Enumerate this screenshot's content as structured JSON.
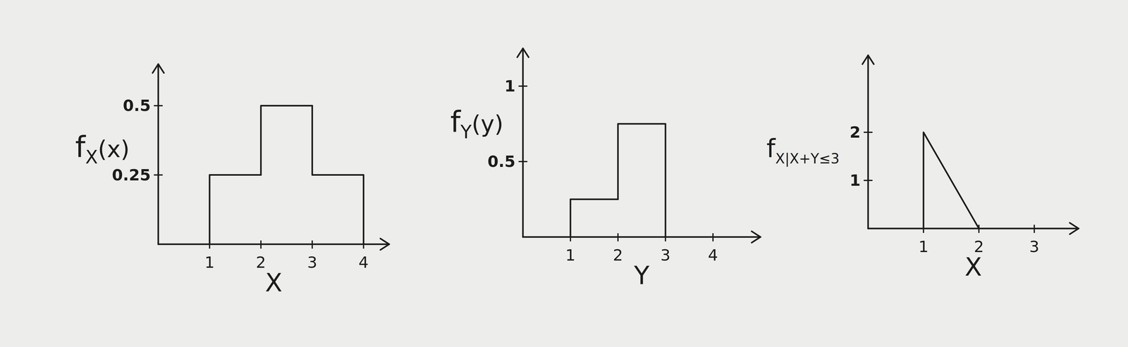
{
  "chart_data": [
    {
      "type": "step",
      "xlabel": "X",
      "ylabel": [
        "f",
        "X",
        "(x)"
      ],
      "bins": [
        1,
        2,
        3,
        4
      ],
      "values": [
        0.25,
        0.5,
        0.25
      ],
      "xlim": [
        0,
        4.5
      ],
      "ylim": [
        0,
        0.65
      ],
      "xticks": [
        1,
        2,
        3,
        4
      ],
      "yticks": [
        0.25,
        0.5
      ],
      "color": "#1c1c1c"
    },
    {
      "type": "step",
      "xlabel": "Y",
      "ylabel": [
        "f",
        "Y",
        "(y)"
      ],
      "bins": [
        1,
        2,
        3
      ],
      "values": [
        0.25,
        0.75
      ],
      "xlim": [
        0,
        5
      ],
      "ylim": [
        0,
        1.25
      ],
      "xticks": [
        1,
        2,
        3,
        4
      ],
      "yticks": [
        0.5,
        1
      ],
      "color": "#1c1c1c"
    },
    {
      "type": "line",
      "xlabel": "X",
      "ylabel": [
        "f",
        "X|X+Y≤3"
      ],
      "x": [
        1,
        1,
        2
      ],
      "values": [
        0,
        2,
        0
      ],
      "xlim": [
        0,
        3.8
      ],
      "ylim": [
        0,
        3.6
      ],
      "xticks": [
        1,
        2,
        3
      ],
      "yticks": [
        1,
        2
      ],
      "color": "#1c1c1c"
    }
  ]
}
